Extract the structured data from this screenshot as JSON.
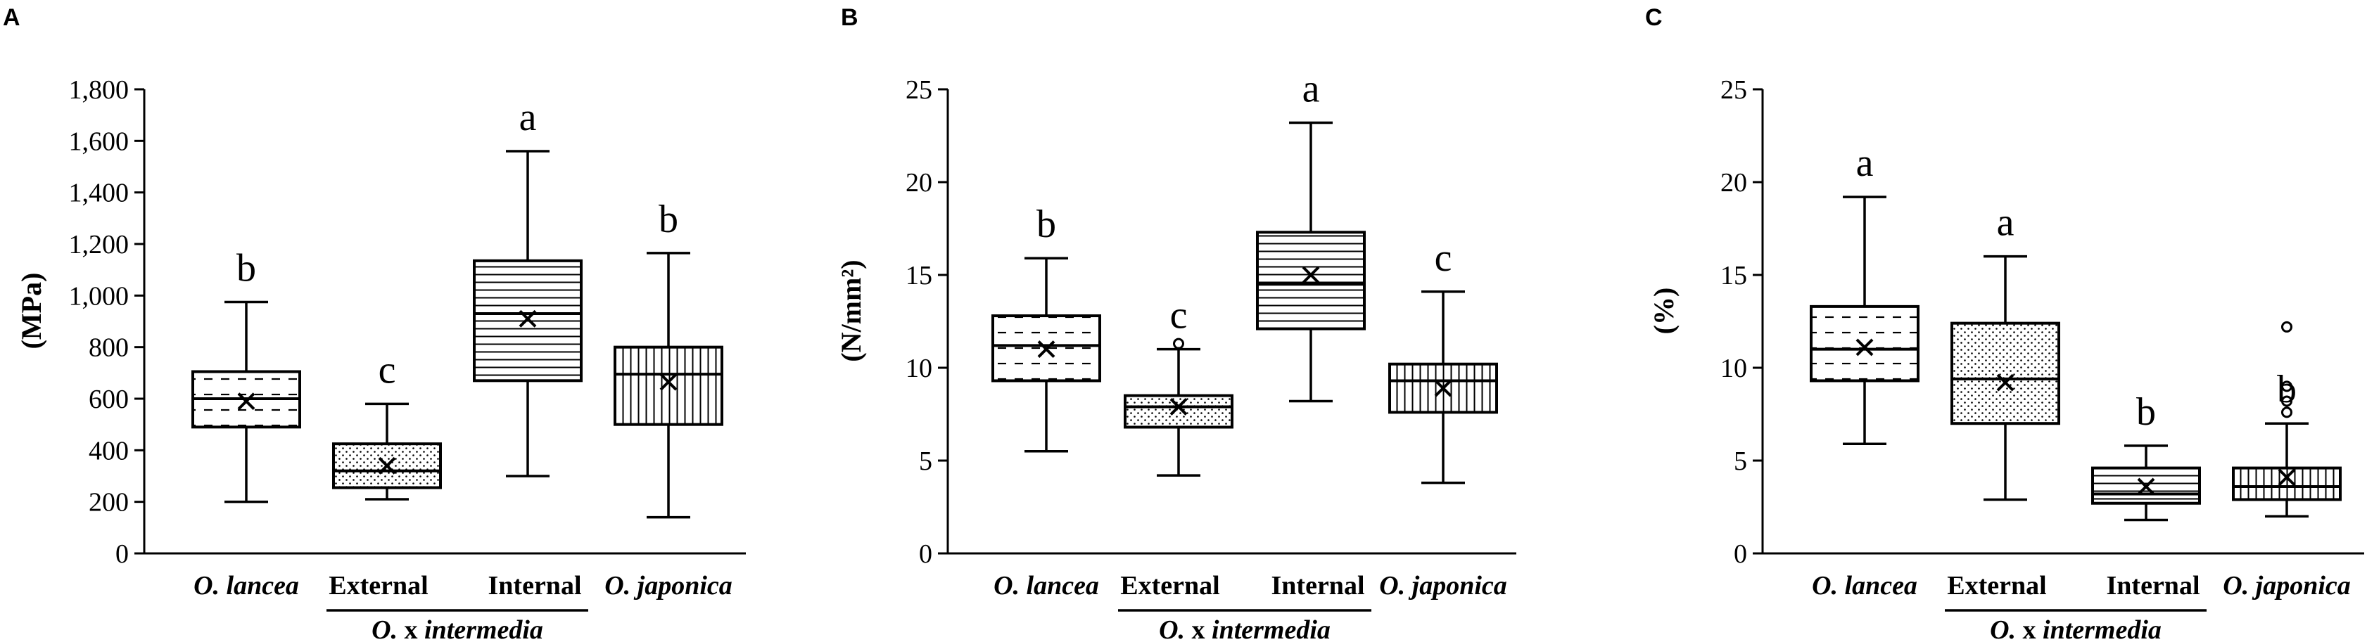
{
  "chart_data": [
    {
      "panel": "A",
      "type": "box",
      "ylabel": "(MPa)",
      "ylim": [
        0,
        1800
      ],
      "yticks": [
        0,
        200,
        400,
        600,
        800,
        1000,
        1200,
        1400,
        1600,
        1800
      ],
      "ytick_labels": [
        "0",
        "200",
        "400",
        "600",
        "800",
        "1,000",
        "1,200",
        "1,400",
        "1,600",
        "1,800"
      ],
      "categories": [
        "O. lancea",
        "External",
        "Internal",
        "O. japonica"
      ],
      "group_label": {
        "prefix": "O.",
        "mid": " x ",
        "suffix": "intermedia"
      },
      "boxes": [
        {
          "category": "O. lancea",
          "min": 200,
          "q1": 490,
          "median": 600,
          "q3": 705,
          "max": 975,
          "mean": 590,
          "letter": "b",
          "pattern": "dashed",
          "outliers": []
        },
        {
          "category": "External",
          "min": 210,
          "q1": 255,
          "median": 320,
          "q3": 425,
          "max": 580,
          "mean": 340,
          "letter": "c",
          "pattern": "dotted",
          "outliers": []
        },
        {
          "category": "Internal",
          "min": 300,
          "q1": 670,
          "median": 930,
          "q3": 1135,
          "max": 1560,
          "mean": 910,
          "letter": "a",
          "pattern": "horizontal",
          "outliers": []
        },
        {
          "category": "O. japonica",
          "min": 140,
          "q1": 500,
          "median": 695,
          "q3": 800,
          "max": 1165,
          "mean": 665,
          "letter": "b",
          "pattern": "vertical",
          "outliers": []
        }
      ]
    },
    {
      "panel": "B",
      "type": "box",
      "ylabel": "(N/mm²)",
      "ylim": [
        0,
        25
      ],
      "yticks": [
        0,
        5,
        10,
        15,
        20,
        25
      ],
      "ytick_labels": [
        "0",
        "5",
        "10",
        "15",
        "20",
        "25"
      ],
      "categories": [
        "O. lancea",
        "External",
        "Internal",
        "O. japonica"
      ],
      "group_label": {
        "prefix": "O.",
        "mid": " x ",
        "suffix": "intermedia"
      },
      "boxes": [
        {
          "category": "O. lancea",
          "min": 5.5,
          "q1": 9.3,
          "median": 11.2,
          "q3": 12.8,
          "max": 15.9,
          "mean": 11.0,
          "letter": "b",
          "pattern": "dashed",
          "outliers": []
        },
        {
          "category": "External",
          "min": 4.2,
          "q1": 6.8,
          "median": 7.9,
          "q3": 8.5,
          "max": 11.0,
          "mean": 7.9,
          "letter": "c",
          "pattern": "dotted",
          "outliers": [
            11.3
          ]
        },
        {
          "category": "Internal",
          "min": 8.2,
          "q1": 12.1,
          "median": 14.5,
          "q3": 17.3,
          "max": 23.2,
          "mean": 15.0,
          "letter": "a",
          "pattern": "horizontal",
          "outliers": []
        },
        {
          "category": "O. japonica",
          "min": 3.8,
          "q1": 7.6,
          "median": 9.3,
          "q3": 10.2,
          "max": 14.1,
          "mean": 8.9,
          "letter": "c",
          "pattern": "vertical",
          "outliers": []
        }
      ]
    },
    {
      "panel": "C",
      "type": "box",
      "ylabel": "(%)",
      "ylim": [
        0,
        25
      ],
      "yticks": [
        0,
        5,
        10,
        15,
        20,
        25
      ],
      "ytick_labels": [
        "0",
        "5",
        "10",
        "15",
        "20",
        "25"
      ],
      "categories": [
        "O. lancea",
        "External",
        "Internal",
        "O. japonica"
      ],
      "group_label": {
        "prefix": "O.",
        "mid": " x ",
        "suffix": "intermedia"
      },
      "boxes": [
        {
          "category": "O. lancea",
          "min": 5.9,
          "q1": 9.3,
          "median": 11.0,
          "q3": 13.3,
          "max": 19.2,
          "mean": 11.1,
          "letter": "a",
          "pattern": "dashed",
          "outliers": []
        },
        {
          "category": "External",
          "min": 2.9,
          "q1": 7.0,
          "median": 9.4,
          "q3": 12.4,
          "max": 16.0,
          "mean": 9.2,
          "letter": "a",
          "pattern": "dotted",
          "outliers": []
        },
        {
          "category": "Internal",
          "min": 1.8,
          "q1": 2.7,
          "median": 3.2,
          "q3": 4.6,
          "max": 5.8,
          "mean": 3.6,
          "letter": "b",
          "pattern": "horizontal",
          "outliers": []
        },
        {
          "category": "O. japonica",
          "min": 2.0,
          "q1": 2.9,
          "median": 3.6,
          "q3": 4.6,
          "max": 7.0,
          "mean": 4.1,
          "letter": "b",
          "pattern": "vertical",
          "outliers": [
            7.6,
            8.2,
            9.0,
            12.2
          ]
        }
      ]
    }
  ]
}
